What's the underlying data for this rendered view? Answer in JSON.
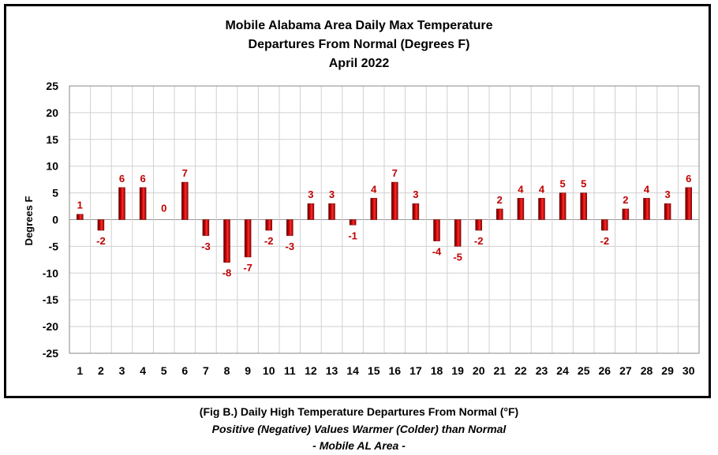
{
  "chart_data": {
    "type": "bar",
    "title": [
      "Mobile Alabama Area Daily Max Temperature",
      "Departures From Normal (Degrees F)",
      "April 2022"
    ],
    "ylabel": "Degrees F",
    "xlabel": "",
    "ylim": [
      -25,
      25
    ],
    "yticks": [
      25,
      20,
      15,
      10,
      5,
      0,
      -5,
      -10,
      -15,
      -20,
      -25
    ],
    "categories": [
      "1",
      "2",
      "3",
      "4",
      "5",
      "6",
      "7",
      "8",
      "9",
      "10",
      "11",
      "12",
      "13",
      "14",
      "15",
      "16",
      "17",
      "18",
      "19",
      "20",
      "21",
      "22",
      "23",
      "24",
      "25",
      "26",
      "27",
      "28",
      "29",
      "30"
    ],
    "values": [
      1,
      -2,
      6,
      6,
      0,
      7,
      -3,
      -8,
      -7,
      -2,
      -3,
      3,
      3,
      -1,
      4,
      7,
      3,
      -4,
      -5,
      -2,
      2,
      4,
      4,
      5,
      5,
      -2,
      2,
      4,
      3,
      6
    ],
    "grid": true,
    "bar_color": "#c00000",
    "label_color": "#c00000"
  },
  "caption": {
    "line1": "(Fig B.) Daily High Temperature Departures From Normal (°F)",
    "line2": "Positive (Negative) Values Warmer (Colder) than Normal",
    "line3": "- Mobile AL Area -"
  }
}
